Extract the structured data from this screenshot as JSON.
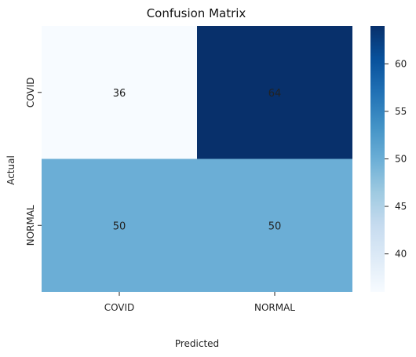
{
  "chart_data": {
    "type": "heatmap",
    "title": "Confusion Matrix",
    "xlabel": "Predicted",
    "ylabel": "Actual",
    "x_categories": [
      "COVID",
      "NORMAL"
    ],
    "y_categories": [
      "COVID",
      "NORMAL"
    ],
    "values": [
      [
        36,
        64
      ],
      [
        50,
        50
      ]
    ],
    "colorbar": {
      "min": 36,
      "max": 64,
      "ticks": [
        40,
        45,
        50,
        55,
        60
      ],
      "colormap": "Blues"
    },
    "colors": {
      "low": "#f7fbff",
      "mid": "#6baed6",
      "high": "#08306b",
      "dark_text": "#262626",
      "light_text": "#ffffff"
    },
    "grid": false,
    "legend": "right colorbar"
  }
}
